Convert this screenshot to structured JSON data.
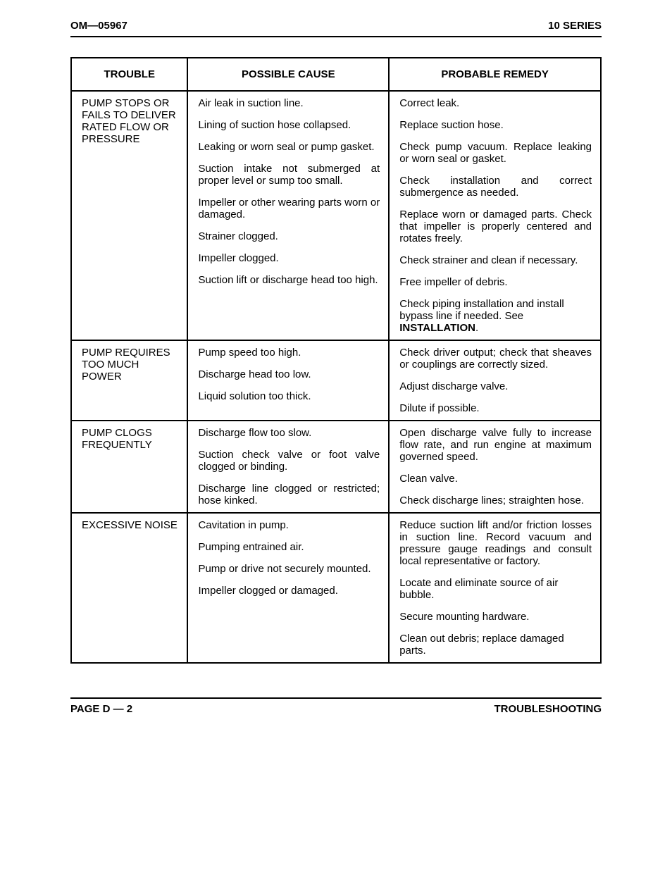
{
  "header": {
    "left": "OM—05967",
    "right": "10 SERIES"
  },
  "columns": {
    "c1": "TROUBLE",
    "c2": "POSSIBLE CAUSE",
    "c3": "PROBABLE REMEDY"
  },
  "sections": [
    {
      "trouble": "PUMP STOPS OR FAILS TO DELIVER RATED FLOW OR PRESSURE",
      "rows": [
        {
          "cause": "Air leak in suction line.",
          "cause_justify": false,
          "remedy": "Correct leak.",
          "remedy_justify": false
        },
        {
          "cause": "Lining of suction hose collapsed.",
          "cause_justify": false,
          "remedy": "Replace suction hose.",
          "remedy_justify": false
        },
        {
          "cause": "Leaking or worn seal or pump gasket.",
          "cause_justify": false,
          "remedy": "Check pump vacuum. Replace leaking or worn seal or gasket.",
          "remedy_justify": true
        },
        {
          "cause": "Suction intake not submerged at proper level or sump too small.",
          "cause_justify": true,
          "remedy": "Check installation and correct submergence as needed.",
          "remedy_justify": true
        },
        {
          "cause": "Impeller or other wearing parts worn or damaged.",
          "cause_justify": true,
          "remedy": "Replace worn or damaged parts. Check that impeller is properly centered and rotates freely.",
          "remedy_justify": true
        },
        {
          "cause": "Strainer clogged.",
          "cause_justify": false,
          "remedy": "Check strainer and clean if necessary.",
          "remedy_justify": false
        },
        {
          "cause": "Impeller clogged.",
          "cause_justify": false,
          "remedy": "Free impeller of debris.",
          "remedy_justify": false
        },
        {
          "cause": "Suction lift or discharge head too high.",
          "cause_justify": false,
          "remedy_pre": "Check piping installation and install bypass line if needed. See ",
          "remedy_bold": "INSTALLATION",
          "remedy_post": ".",
          "remedy_justify": false
        }
      ]
    },
    {
      "trouble": "PUMP REQUIRES TOO MUCH POWER",
      "rows": [
        {
          "cause": "Pump speed too high.",
          "cause_justify": false,
          "remedy": "Check driver output; check that sheaves or couplings are correctly sized.",
          "remedy_justify": true
        },
        {
          "cause": "Discharge head too low.",
          "cause_justify": false,
          "remedy": "Adjust discharge valve.",
          "remedy_justify": true
        },
        {
          "cause": "Liquid solution too thick.",
          "cause_justify": false,
          "remedy": "Dilute if possible.",
          "remedy_justify": false
        }
      ]
    },
    {
      "trouble": "PUMP CLOGS FREQUENTLY",
      "rows": [
        {
          "cause": "Discharge flow too slow.",
          "cause_justify": false,
          "remedy": "Open discharge valve fully to increase flow rate, and run engine at maximum governed speed.",
          "remedy_justify": true
        },
        {
          "cause": "Suction check valve or foot valve clogged or binding.",
          "cause_justify": true,
          "remedy": "Clean valve.",
          "remedy_justify": false
        },
        {
          "cause": "Discharge line clogged or restricted; hose kinked.",
          "cause_justify": true,
          "remedy": "Check discharge lines; straighten hose.",
          "remedy_justify": true
        }
      ]
    },
    {
      "trouble": "EXCESSIVE NOISE",
      "rows": [
        {
          "cause": "Cavitation in pump.",
          "cause_justify": false,
          "remedy": "Reduce suction lift and/or friction losses in suction line. Record vacuum and pressure gauge readings and consult local representative or factory.",
          "remedy_justify": true
        },
        {
          "cause": "Pumping entrained air.",
          "cause_justify": true,
          "remedy": "Locate and eliminate source of air bubble.",
          "remedy_justify": false
        },
        {
          "cause": "Pump or drive not securely mounted.",
          "cause_justify": false,
          "remedy": "Secure mounting hardware.",
          "remedy_justify": true
        },
        {
          "cause": "Impeller clogged or damaged.",
          "cause_justify": false,
          "remedy": "Clean out debris; replace damaged parts.",
          "remedy_justify": false
        }
      ]
    }
  ],
  "footer": {
    "left": "PAGE D — 2",
    "right": "TROUBLESHOOTING"
  }
}
